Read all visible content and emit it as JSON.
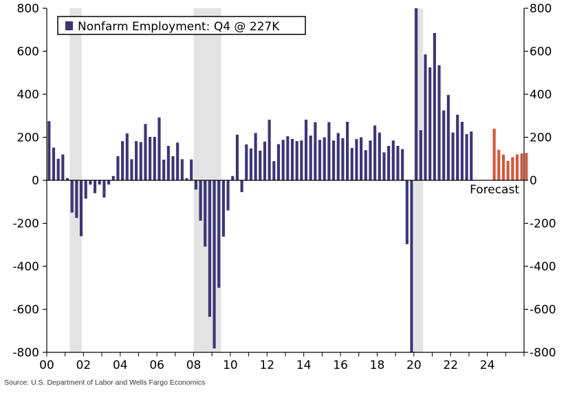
{
  "chart_data": {
    "type": "bar",
    "title": "",
    "xlabel": "",
    "ylabel": "",
    "ylim": [
      -800,
      800
    ],
    "yticks": [
      -800,
      -600,
      -400,
      -200,
      0,
      200,
      400,
      600,
      800
    ],
    "ytick_labels": [
      "-800",
      "-600",
      "-400",
      "-200",
      "0",
      "200",
      "400",
      "600",
      "800"
    ],
    "x_start_year": 2000,
    "x_end_year": 2026,
    "xtick_years": [
      2000,
      2002,
      2004,
      2006,
      2008,
      2010,
      2012,
      2014,
      2016,
      2018,
      2020,
      2022,
      2024
    ],
    "xtick_labels": [
      "00",
      "02",
      "04",
      "06",
      "08",
      "10",
      "12",
      "14",
      "16",
      "18",
      "20",
      "22",
      "24"
    ],
    "legend": "Nonfarm Employment: Q4 @ 227K",
    "forecast_label": "Forecast",
    "source": "Source: U.S. Department of Labor and Wells Fargo Economics",
    "colors": {
      "actual": "#3d3577",
      "forecast": "#d2573b",
      "recession": "#e3e3e3"
    },
    "recessions": [
      {
        "start": 2001.25,
        "end": 2001.9
      },
      {
        "start": 2008.0,
        "end": 2009.5
      },
      {
        "start": 2020.0,
        "end": 2020.5
      }
    ],
    "series": [
      {
        "name": "Nonfarm Employment",
        "kind": "actual",
        "start": "2000Q1",
        "values": [
          275,
          152,
          100,
          120,
          10,
          -150,
          -175,
          -260,
          -85,
          -20,
          -60,
          -20,
          -80,
          -20,
          20,
          112,
          182,
          218,
          98,
          182,
          178,
          262,
          202,
          202,
          292,
          96,
          160,
          112,
          175,
          98,
          10,
          97,
          -43,
          -188,
          -308,
          -635,
          -782,
          -500,
          -262,
          -140,
          20,
          212,
          -55,
          167,
          148,
          220,
          138,
          180,
          282,
          89,
          168,
          188,
          205,
          192,
          182,
          185,
          282,
          208,
          270,
          188,
          200,
          270,
          185,
          220,
          196,
          272,
          150,
          192,
          200,
          140,
          185,
          255,
          222,
          130,
          160,
          185,
          160,
          145,
          -297,
          -800,
          800,
          233,
          585,
          525,
          685,
          535,
          325,
          397,
          222,
          305,
          272,
          215,
          227
        ]
      },
      {
        "name": "Forecast",
        "kind": "forecast",
        "start": "2024Q2",
        "values": [
          240,
          142,
          120,
          90,
          108,
          120,
          125,
          127
        ]
      }
    ]
  }
}
